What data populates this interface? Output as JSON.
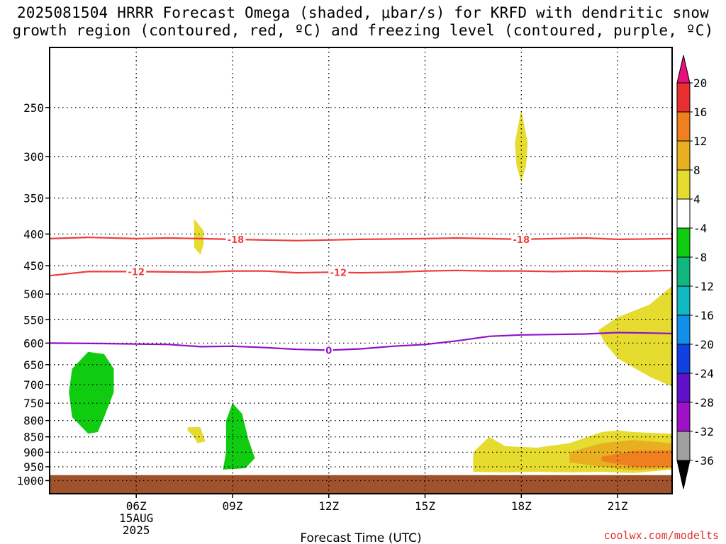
{
  "header": {
    "title_line1": "2025081504 HRRR Forecast Omega (shaded, μbar/s) for KRFD with dendritic snow",
    "title_line2": "growth region (contoured, red, ºC) and freezing level (contoured, purple, ºC)"
  },
  "footer": {
    "credit": "coolwx.com/modelts"
  },
  "chart_data": {
    "type": "time-height cross section",
    "xlabel": "Forecast Time (UTC)",
    "x_range_hours_utc": [
      3.3,
      22.7
    ],
    "x_ticks": [
      {
        "hour": 6,
        "label": "06Z",
        "sub": [
          "15AUG",
          "2025"
        ]
      },
      {
        "hour": 9,
        "label": "09Z"
      },
      {
        "hour": 12,
        "label": "12Z"
      },
      {
        "hour": 15,
        "label": "15Z"
      },
      {
        "hour": 18,
        "label": "18Z"
      },
      {
        "hour": 21,
        "label": "21Z"
      }
    ],
    "y_scale": "log pressure (hPa), inverted",
    "y_range_hpa": [
      1050,
      200
    ],
    "y_ticks": [
      250,
      300,
      350,
      400,
      450,
      500,
      550,
      600,
      650,
      700,
      750,
      800,
      850,
      900,
      950,
      1000
    ],
    "grid": true,
    "ground_hpa": 980,
    "colorbar": {
      "levels": [
        20,
        16,
        12,
        8,
        4,
        -4,
        -8,
        -12,
        -16,
        -20,
        -24,
        -28,
        -32,
        -36
      ],
      "colors": [
        "#e8107a",
        "#e83030",
        "#ee8020",
        "#e8b020",
        "#e6dc30",
        "#ffffff",
        "#10cc10",
        "#10b880",
        "#10b8c0",
        "#1090e8",
        "#1040e0",
        "#6010c8",
        "#a010c8",
        "#a0a0a0",
        "#000000"
      ]
    },
    "contours": [
      {
        "label": "-18",
        "color": "#f03c3c",
        "points": [
          [
            3.3,
            407
          ],
          [
            4.5,
            405
          ],
          [
            6,
            407
          ],
          [
            7,
            406
          ],
          [
            8,
            407
          ],
          [
            9,
            408
          ],
          [
            11,
            410
          ],
          [
            12,
            409
          ],
          [
            13,
            408
          ],
          [
            15,
            407
          ],
          [
            16,
            406
          ],
          [
            17,
            407
          ],
          [
            18,
            408
          ],
          [
            19,
            407
          ],
          [
            20,
            406
          ],
          [
            21,
            408
          ],
          [
            22.7,
            407
          ]
        ],
        "label_hours": [
          9.1,
          18
        ]
      },
      {
        "label": "-12",
        "color": "#f03c3c",
        "points": [
          [
            3.3,
            467
          ],
          [
            4.5,
            460
          ],
          [
            6,
            460
          ],
          [
            8,
            461
          ],
          [
            9,
            459
          ],
          [
            10,
            459
          ],
          [
            11,
            462
          ],
          [
            12,
            461
          ],
          [
            13,
            462
          ],
          [
            14,
            461
          ],
          [
            15,
            459
          ],
          [
            16,
            458
          ],
          [
            17,
            459
          ],
          [
            18,
            459
          ],
          [
            19,
            460
          ],
          [
            20,
            459
          ],
          [
            21,
            460
          ],
          [
            22,
            459
          ],
          [
            22.7,
            458
          ]
        ],
        "label_hours": [
          6,
          12.3
        ]
      },
      {
        "label": "0",
        "color": "#9010c8",
        "points": [
          [
            3.3,
            600
          ],
          [
            5,
            601
          ],
          [
            6,
            602
          ],
          [
            7,
            603
          ],
          [
            8,
            608
          ],
          [
            9,
            607
          ],
          [
            10,
            610
          ],
          [
            11,
            614
          ],
          [
            12,
            616
          ],
          [
            13,
            613
          ],
          [
            14,
            607
          ],
          [
            15,
            603
          ],
          [
            16,
            595
          ],
          [
            17,
            585
          ],
          [
            18,
            582
          ],
          [
            19,
            581
          ],
          [
            20,
            580
          ],
          [
            21,
            577
          ],
          [
            22,
            578
          ],
          [
            22.7,
            579
          ]
        ],
        "label_hours": [
          12
        ]
      }
    ],
    "omega_shaded": [
      {
        "level": "-8",
        "color": "#10cc10",
        "points": [
          [
            4.0,
            660
          ],
          [
            4.5,
            620
          ],
          [
            5.0,
            625
          ],
          [
            5.3,
            660
          ],
          [
            5.3,
            720
          ],
          [
            5.0,
            790
          ],
          [
            4.8,
            835
          ],
          [
            4.5,
            840
          ],
          [
            4.0,
            790
          ],
          [
            3.9,
            720
          ]
        ]
      },
      {
        "level": "-8",
        "color": "#10cc10",
        "points": [
          [
            8.8,
            800
          ],
          [
            9.0,
            750
          ],
          [
            9.3,
            780
          ],
          [
            9.5,
            860
          ],
          [
            9.7,
            920
          ],
          [
            9.4,
            955
          ],
          [
            8.7,
            960
          ],
          [
            8.8,
            900
          ]
        ]
      },
      {
        "level": "4",
        "color": "#e6dc30",
        "points": [
          [
            7.8,
            378
          ],
          [
            8.1,
            395
          ],
          [
            8.1,
            415
          ],
          [
            8.0,
            432
          ],
          [
            7.8,
            420
          ],
          [
            7.8,
            400
          ]
        ]
      },
      {
        "level": "4",
        "color": "#e6dc30",
        "points": [
          [
            18.0,
            252
          ],
          [
            18.2,
            285
          ],
          [
            18.15,
            310
          ],
          [
            18.0,
            330
          ],
          [
            17.85,
            310
          ],
          [
            17.8,
            285
          ]
        ]
      },
      {
        "level": "4",
        "color": "#e6dc30",
        "points": [
          [
            7.6,
            820
          ],
          [
            8.0,
            820
          ],
          [
            8.15,
            865
          ],
          [
            7.9,
            870
          ],
          [
            7.8,
            850
          ],
          [
            7.6,
            830
          ]
        ]
      },
      {
        "level": "4",
        "color": "#e6dc30",
        "points": [
          [
            22.7,
            485
          ],
          [
            22.0,
            520
          ],
          [
            21.0,
            545
          ],
          [
            20.4,
            572
          ],
          [
            20.6,
            600
          ],
          [
            21.0,
            635
          ],
          [
            22.0,
            680
          ],
          [
            22.7,
            705
          ]
        ]
      },
      {
        "level": "4",
        "color": "#e6dc30",
        "points": [
          [
            16.5,
            900
          ],
          [
            17.0,
            850
          ],
          [
            17.5,
            880
          ],
          [
            18.5,
            885
          ],
          [
            19.5,
            870
          ],
          [
            20.5,
            835
          ],
          [
            21.0,
            830
          ],
          [
            21.5,
            835
          ],
          [
            22.7,
            840
          ],
          [
            22.7,
            960
          ],
          [
            21.5,
            972
          ],
          [
            20.5,
            968
          ],
          [
            19.5,
            970
          ],
          [
            18.5,
            968
          ],
          [
            17.5,
            970
          ],
          [
            16.5,
            968
          ]
        ]
      },
      {
        "level": "8",
        "color": "#e8b020",
        "points": [
          [
            19.5,
            900
          ],
          [
            20.5,
            870
          ],
          [
            21.5,
            860
          ],
          [
            22.7,
            870
          ],
          [
            22.7,
            955
          ],
          [
            21.5,
            962
          ],
          [
            20.5,
            950
          ],
          [
            19.5,
            935
          ]
        ]
      },
      {
        "level": "12",
        "color": "#ee8020",
        "points": [
          [
            20.5,
            915
          ],
          [
            21.5,
            895
          ],
          [
            22.7,
            893
          ],
          [
            22.7,
            950
          ],
          [
            21.5,
            950
          ],
          [
            20.5,
            930
          ]
        ]
      }
    ]
  }
}
